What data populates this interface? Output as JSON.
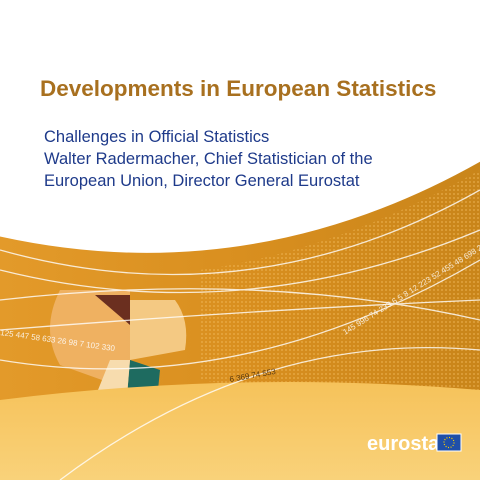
{
  "header": {
    "title": "Developments in European Statistics",
    "subtitle_lines": [
      "Challenges in Official Statistics",
      "Walter Radermacher, Chief Statistician of the",
      "European Union, Director General Eurostat"
    ]
  },
  "decoration": {
    "number_strings": [
      "125 447 58 633 26 98 7 102 330",
      "6 369 74 553",
      "145 996 74 233 6 5 8 12 223 52 455 48 698 2"
    ]
  },
  "logo": {
    "text": "eurostat"
  }
}
